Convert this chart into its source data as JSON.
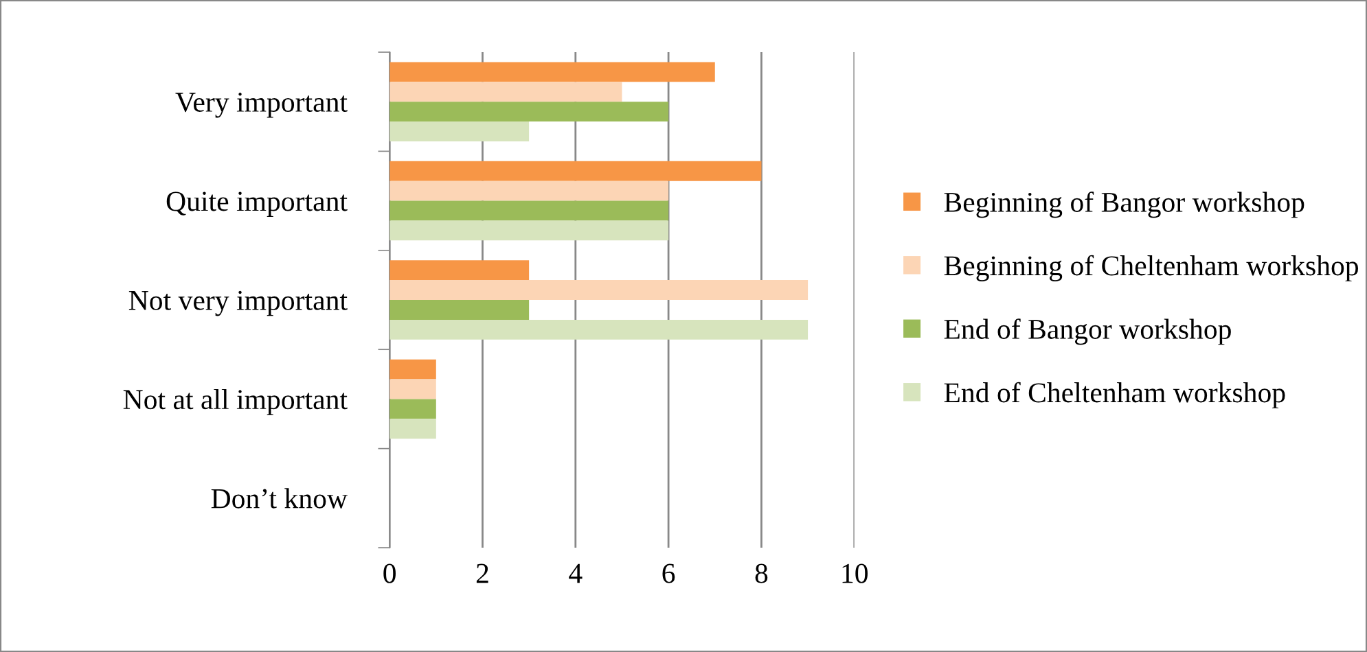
{
  "chart_data": {
    "type": "bar",
    "orientation": "horizontal",
    "categories": [
      "Very important",
      "Quite important",
      "Not very important",
      "Not at all important",
      "Don’t know"
    ],
    "series": [
      {
        "name": "Beginning of Bangor workshop",
        "color": "#f79646",
        "values": [
          7,
          8,
          3,
          1,
          0
        ]
      },
      {
        "name": "Beginning of Cheltenham workshop",
        "color": "#fcd5b5",
        "values": [
          5,
          6,
          9,
          1,
          0
        ]
      },
      {
        "name": "End of Bangor workshop",
        "color": "#9bbb59",
        "values": [
          6,
          6,
          3,
          1,
          0
        ]
      },
      {
        "name": "End of Cheltenham workshop",
        "color": "#d7e4bd",
        "values": [
          3,
          6,
          9,
          1,
          0
        ]
      }
    ],
    "xlim": [
      0,
      10
    ],
    "xticks": [
      0,
      2,
      4,
      6,
      8,
      10
    ],
    "grid": "x",
    "legend": "right"
  }
}
